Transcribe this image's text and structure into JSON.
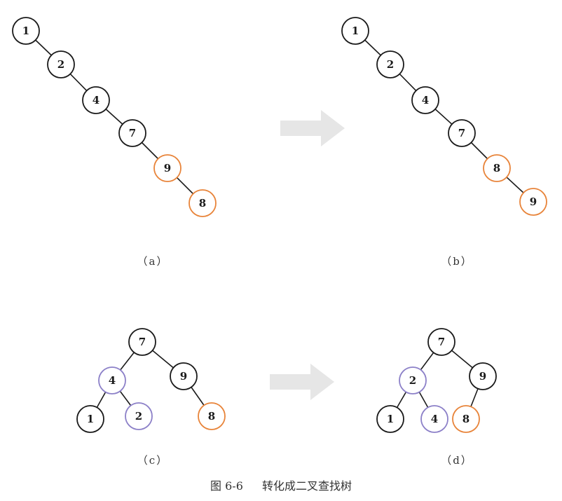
{
  "colors": {
    "black": "#1a1a1a",
    "orange": "#e8843a",
    "purple": "#8c80c8",
    "arrow": "#e6e6e6"
  },
  "panels": [
    {
      "id": "a",
      "label": "（a）",
      "nodes": [
        {
          "id": "1",
          "label": "1",
          "color": "black"
        },
        {
          "id": "2",
          "label": "2",
          "color": "black"
        },
        {
          "id": "4",
          "label": "4",
          "color": "black"
        },
        {
          "id": "7",
          "label": "7",
          "color": "black"
        },
        {
          "id": "9",
          "label": "9",
          "color": "orange"
        },
        {
          "id": "8",
          "label": "8",
          "color": "orange"
        }
      ],
      "edges": [
        [
          "1",
          "2"
        ],
        [
          "2",
          "4"
        ],
        [
          "4",
          "7"
        ],
        [
          "7",
          "9"
        ],
        [
          "9",
          "8"
        ]
      ]
    },
    {
      "id": "b",
      "label": "（b）",
      "nodes": [
        {
          "id": "1",
          "label": "1",
          "color": "black"
        },
        {
          "id": "2",
          "label": "2",
          "color": "black"
        },
        {
          "id": "4",
          "label": "4",
          "color": "black"
        },
        {
          "id": "7",
          "label": "7",
          "color": "black"
        },
        {
          "id": "8",
          "label": "8",
          "color": "orange"
        },
        {
          "id": "9",
          "label": "9",
          "color": "orange"
        }
      ],
      "edges": [
        [
          "1",
          "2"
        ],
        [
          "2",
          "4"
        ],
        [
          "4",
          "7"
        ],
        [
          "7",
          "8"
        ],
        [
          "8",
          "9"
        ]
      ]
    },
    {
      "id": "c",
      "label": "（c）",
      "nodes": [
        {
          "id": "7",
          "label": "7",
          "color": "black"
        },
        {
          "id": "4",
          "label": "4",
          "color": "purple"
        },
        {
          "id": "9",
          "label": "9",
          "color": "black"
        },
        {
          "id": "1",
          "label": "1",
          "color": "black"
        },
        {
          "id": "2",
          "label": "2",
          "color": "purple"
        },
        {
          "id": "8",
          "label": "8",
          "color": "orange"
        }
      ],
      "edges": [
        [
          "7",
          "4"
        ],
        [
          "7",
          "9"
        ],
        [
          "4",
          "1"
        ],
        [
          "4",
          "2"
        ],
        [
          "9",
          "8"
        ]
      ]
    },
    {
      "id": "d",
      "label": "（d）",
      "nodes": [
        {
          "id": "7",
          "label": "7",
          "color": "black"
        },
        {
          "id": "2",
          "label": "2",
          "color": "purple"
        },
        {
          "id": "9",
          "label": "9",
          "color": "black"
        },
        {
          "id": "1",
          "label": "1",
          "color": "black"
        },
        {
          "id": "4",
          "label": "4",
          "color": "purple"
        },
        {
          "id": "8",
          "label": "8",
          "color": "orange"
        }
      ],
      "edges": [
        [
          "7",
          "2"
        ],
        [
          "7",
          "9"
        ],
        [
          "2",
          "1"
        ],
        [
          "2",
          "4"
        ],
        [
          "9",
          "8"
        ]
      ]
    }
  ],
  "caption": {
    "figure_number": "图 6-6",
    "title": "转化成二叉查找树"
  }
}
